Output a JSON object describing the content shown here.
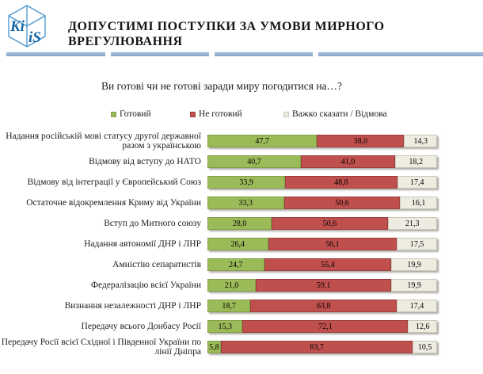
{
  "logo": {
    "left": "Ki",
    "right": "iS"
  },
  "header": {
    "title": "ДОПУСТИМІ ПОСТУПКИ ЗА УМОВИ МИРНОГО ВРЕГУЛЮВАННЯ"
  },
  "chart_data": {
    "type": "bar",
    "orientation": "horizontal",
    "stacked": true,
    "title": "Ви готові чи не готові заради миру погодитися на…?",
    "xlim": [
      0,
      100
    ],
    "legend_position": "top",
    "decimal_separator": ",",
    "value_labels": "inside",
    "legend": [
      {
        "label": "Готовий",
        "color": "#9bbb59",
        "border": "#82a048"
      },
      {
        "label": "Не готовий",
        "color": "#c0504d",
        "border": "#9c3e3c"
      },
      {
        "label": "Важко сказати / Відмова",
        "color": "#eeece1",
        "border": "#cbc8ba"
      }
    ],
    "categories": [
      "Надання російській мові статусу другої державної разом з українською",
      "Відмову від вступу до НАТО",
      "Відмову від інтеграції у Європейський Союз",
      "Остаточне відокремлення Криму від України",
      "Вступ до Митного союзу",
      "Надання автономії ДНР і ЛНР",
      "Амністію сепаратистів",
      "Федералізацію всієї України",
      "Визнання незалежності ДНР і ЛНР",
      "Передачу всього Донбасу Росії",
      "Передачу Росії всієї Східної і Південної України по лінії Дніпра"
    ],
    "series": [
      {
        "name": "Готовий",
        "values": [
          47.7,
          40.7,
          33.9,
          33.3,
          28.0,
          26.4,
          24.7,
          21.0,
          18.7,
          15.3,
          5.8
        ]
      },
      {
        "name": "Не готовий",
        "values": [
          38.0,
          41.0,
          48.8,
          50.6,
          50.6,
          56.1,
          55.4,
          59.1,
          63.8,
          72.1,
          83.7
        ]
      },
      {
        "name": "Важко сказати / Відмова",
        "values": [
          14.3,
          18.2,
          17.4,
          16.1,
          21.3,
          17.5,
          19.9,
          19.9,
          17.4,
          12.6,
          10.5
        ]
      }
    ]
  }
}
